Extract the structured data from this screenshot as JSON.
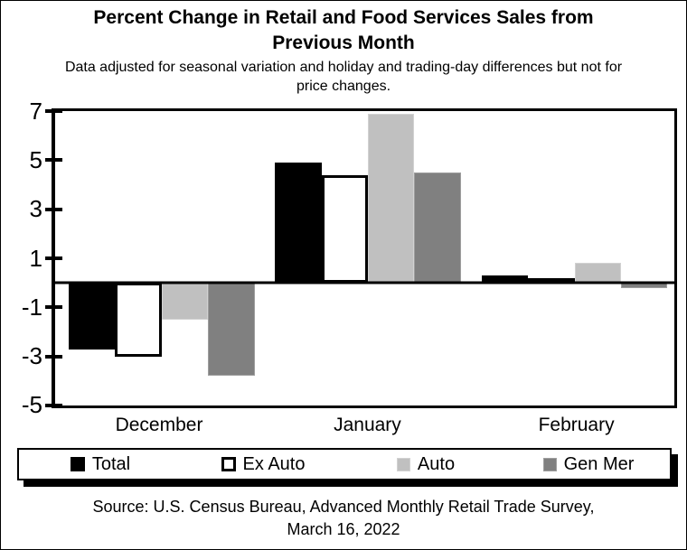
{
  "page": {
    "title_line1": "Percent Change in Retail and Food Services Sales from",
    "title_line2": "Previous Month",
    "subtitle_line1": "Data adjusted for seasonal variation and holiday and trading-day differences but not for",
    "subtitle_line2": "price changes.",
    "source_line1": "Source: U.S. Census Bureau, Advanced Monthly Retail Trade Survey,",
    "source_line2": "March 16, 2022"
  },
  "chart_data": {
    "type": "bar",
    "title": "Percent Change in Retail and Food Services Sales from Previous Month",
    "subtitle": "Data adjusted for seasonal variation and holiday and trading-day differences but not for price changes.",
    "categories": [
      "December",
      "January",
      "February"
    ],
    "series": [
      {
        "name": "Total",
        "values": [
          -2.7,
          4.9,
          0.3
        ],
        "color": "#000000"
      },
      {
        "name": "Ex Auto",
        "values": [
          -3.0,
          4.4,
          0.2
        ],
        "color": "#ffffff",
        "border": "#000000"
      },
      {
        "name": "Auto",
        "values": [
          -1.5,
          6.9,
          0.8
        ],
        "color": "#c0c0c0",
        "edge": "#d2d2d2"
      },
      {
        "name": "Gen Mer",
        "values": [
          -3.8,
          4.5,
          -0.2
        ],
        "color": "#808080",
        "edge": "#9e9e9e"
      }
    ],
    "xlabel": "",
    "ylabel": "",
    "ylim": [
      -5,
      7
    ],
    "yticks": [
      7,
      5,
      3,
      1,
      -1,
      -3,
      -5
    ],
    "grid": false,
    "legend_position": "bottom",
    "colors": {
      "total": "#000000",
      "ex_auto": "#ffffff",
      "auto": "#c0c0c0",
      "gen_mer": "#808080"
    }
  }
}
